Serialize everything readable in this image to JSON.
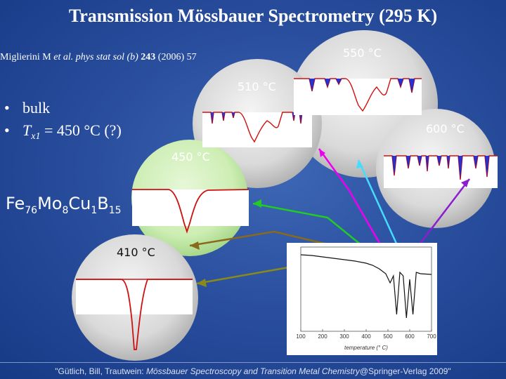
{
  "slide": {
    "title": "Transmission Mössbauer Spectrometry (295 K)",
    "citation": {
      "authors": "Miglierini M ",
      "etal": "et al. phys stat sol (b) ",
      "volume": "243",
      "rest": " (2006) 57"
    },
    "bullets": [
      {
        "dot": "•",
        "text": "bulk"
      },
      {
        "dot": "•",
        "prefix": "T",
        "sub": "x1",
        "text": " = 450 °C (?)"
      }
    ],
    "composition": {
      "el1": "Fe",
      "n1": "76",
      "el2": "Mo",
      "n2": "8",
      "el3": "Cu",
      "n3": "1",
      "el4": "B",
      "n4": "15"
    },
    "temperatures": {
      "t410": "410 °C",
      "t450": "450 °C",
      "t510": "510 °C",
      "t550": "550 °C",
      "t600": "600 °C"
    },
    "footer": {
      "prefix": "\"Gütlich, Bill, Trautwein: ",
      "book": "Mössbauer Spectroscopy and Transition Metal Chemistry",
      "suffix": "@Springer-Verlag 2009\""
    },
    "colors": {
      "background": "#2a4f9e",
      "spectrum_line": "#d01010",
      "absorption_fill": "#0a1fd0",
      "arrow_410": "#8a8a1a",
      "arrow_450": "#22cc22",
      "arrow_510": "#ee00ee",
      "arrow_550": "#44ddff",
      "arrow_600": "#8b1fd0",
      "arrow_extra": "#8a6a1a"
    }
  },
  "chart_data": {
    "type": "line",
    "title": "",
    "xlabel": "temperature (° C)",
    "ylabel": "",
    "xlim": [
      100,
      700
    ],
    "x_ticks": [
      100,
      200,
      300,
      400,
      500,
      600,
      700
    ],
    "annotation": "",
    "series": [
      {
        "x": [
          100,
          150,
          200,
          250,
          300,
          350,
          400,
          430,
          460,
          490,
          510,
          525,
          540,
          555,
          570,
          585,
          600,
          615,
          630,
          650,
          700
        ],
        "y": [
          0.05,
          0.06,
          0.08,
          0.1,
          0.12,
          0.14,
          0.17,
          0.2,
          0.25,
          0.32,
          0.45,
          0.35,
          0.9,
          0.3,
          0.35,
          0.95,
          0.4,
          0.9,
          0.3,
          0.32,
          0.33
        ]
      }
    ]
  }
}
